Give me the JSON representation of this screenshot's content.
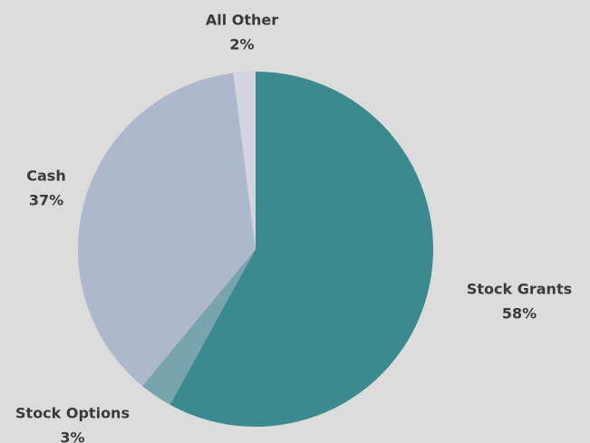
{
  "chart_data": {
    "type": "pie",
    "categories": [
      "Stock Grants",
      "Stock Options",
      "Cash",
      "All Other"
    ],
    "values": [
      58,
      3,
      37,
      2
    ],
    "value_labels": [
      "58%",
      "3%",
      "37%",
      "2%"
    ],
    "colors": [
      "#3a8a8f",
      "#7aa3b0",
      "#adb8cc",
      "#d4d3e0"
    ]
  }
}
